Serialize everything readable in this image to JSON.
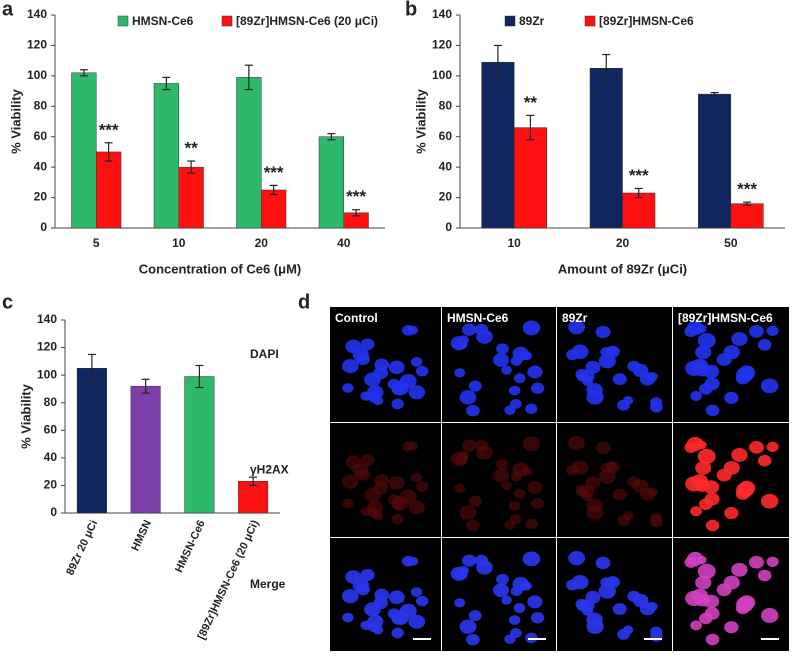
{
  "chart_data": [
    {
      "type": "bar",
      "panel_label": "a",
      "ylabel": "% Viability",
      "xlabel": "Concentration of Ce6 (μM)",
      "categories": [
        "5",
        "10",
        "20",
        "40"
      ],
      "series": [
        {
          "name": "HMSN-Ce6",
          "color": "#2eb86a",
          "values": [
            102,
            95,
            99,
            60
          ],
          "errors": [
            2,
            4,
            8,
            2
          ]
        },
        {
          "name": "[89Zr]HMSN-Ce6 (20 μCi)",
          "color": "#ff1010",
          "values": [
            50,
            40,
            25,
            10
          ],
          "errors": [
            6,
            4,
            3,
            2
          ],
          "significance": [
            "***",
            "**",
            "***",
            "***"
          ]
        }
      ],
      "ylim": [
        0,
        140
      ],
      "yticks": [
        0,
        20,
        40,
        60,
        80,
        100,
        120,
        140
      ]
    },
    {
      "type": "bar",
      "panel_label": "b",
      "ylabel": "% Viability",
      "xlabel": "Amount of 89Zr (μCi)",
      "categories": [
        "10",
        "20",
        "50"
      ],
      "series": [
        {
          "name": "89Zr",
          "color": "#10265e",
          "values": [
            109,
            105,
            88
          ],
          "errors": [
            11,
            9,
            1
          ]
        },
        {
          "name": "[89Zr]HMSN-Ce6",
          "color": "#ff1010",
          "values": [
            66,
            23,
            16
          ],
          "errors": [
            8,
            3,
            1
          ],
          "significance": [
            "**",
            "***",
            "***"
          ]
        }
      ],
      "ylim": [
        0,
        140
      ],
      "yticks": [
        0,
        20,
        40,
        60,
        80,
        100,
        120,
        140
      ]
    },
    {
      "type": "bar",
      "panel_label": "c",
      "ylabel": "% Viability",
      "categories": [
        "89Zr 20 μCi",
        "HMSN",
        "HMSN-Ce6",
        "[89Zr]HMSN-Ce6 (20 μCi)"
      ],
      "values": [
        105,
        92,
        99,
        23
      ],
      "errors": [
        10,
        5,
        8,
        3
      ],
      "colors": [
        "#10265e",
        "#7d3fa8",
        "#2eb86a",
        "#ff1010"
      ],
      "ylim": [
        0,
        140
      ],
      "yticks": [
        0,
        20,
        40,
        60,
        80,
        100,
        120,
        140
      ]
    }
  ],
  "image_panel": {
    "panel_label": "d",
    "columns": [
      "Control",
      "HMSN-Ce6",
      "89Zr",
      "[89Zr]HMSN-Ce6"
    ],
    "rows": [
      "DAPI",
      "γH2AX",
      "Merge"
    ]
  }
}
